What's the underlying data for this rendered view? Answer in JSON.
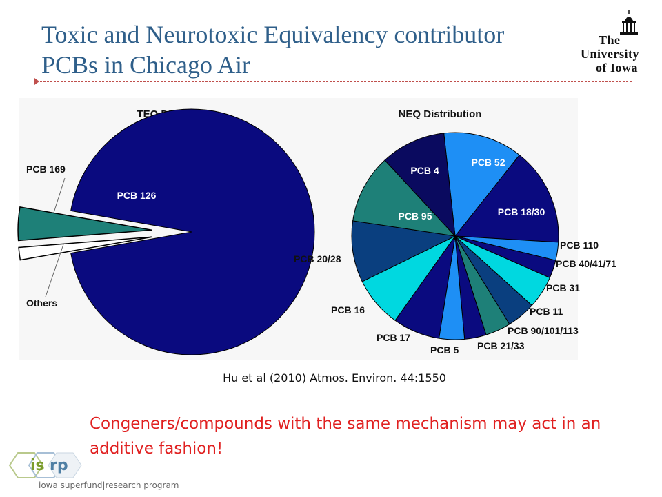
{
  "header": {
    "title": "Toxic and Neurotoxic Equivalency contributor PCBs in Chicago Air",
    "logo_line1": "The",
    "logo_line2": "University",
    "logo_line3": "of Iowa"
  },
  "chart_data": [
    {
      "type": "pie",
      "title": "TEQ Distribution",
      "slices": [
        {
          "label": "PCB 126",
          "value": 94.5,
          "color": "#0a0a7f",
          "label_pos": "inside"
        },
        {
          "label": "PCB 169",
          "value": 4.0,
          "color": "#1e8078",
          "label_pos": "outside",
          "exploded": true
        },
        {
          "label": "Others",
          "value": 1.5,
          "color": "#ffffff",
          "label_pos": "outside",
          "exploded": true
        }
      ]
    },
    {
      "type": "pie",
      "title": "NEQ Distribution",
      "slices": [
        {
          "label": "PCB 52",
          "value": 11.0,
          "color": "#1e8ff5"
        },
        {
          "label": "PCB 18/30",
          "value": 13.5,
          "color": "#0a0a7f"
        },
        {
          "label": "PCB 110",
          "value": 2.5,
          "color": "#1e8ff5"
        },
        {
          "label": "PCB 40/41/71",
          "value": 2.5,
          "color": "#0a0a7f"
        },
        {
          "label": "PCB 31",
          "value": 4.5,
          "color": "#00d8e0"
        },
        {
          "label": "PCB 11",
          "value": 4.0,
          "color": "#0a3f7f"
        },
        {
          "label": "PCB 90/101/113",
          "value": 3.5,
          "color": "#1e8078"
        },
        {
          "label": "PCB 21/33",
          "value": 3.0,
          "color": "#0a0a7f"
        },
        {
          "label": "PCB 5",
          "value": 3.5,
          "color": "#1e8ff5"
        },
        {
          "label": "PCB 17",
          "value": 6.5,
          "color": "#0a0a7f"
        },
        {
          "label": "PCB 16",
          "value": 7.0,
          "color": "#00d8e0"
        },
        {
          "label": "PCB 20/28",
          "value": 8.5,
          "color": "#0a3f7f"
        },
        {
          "label": "PCB 95",
          "value": 9.5,
          "color": "#1e8078"
        },
        {
          "label": "PCB 4",
          "value": 9.0,
          "color": "#0a0a5f"
        }
      ]
    }
  ],
  "citation": "Hu et al (2010) Atmos. Environ. 44:1550",
  "note": "Congeners/compounds  with the same mechanism may act in an additive fashion!",
  "footer_logo": {
    "is": "is",
    "rp": "rp",
    "program": "iowa superfund|research program"
  },
  "colors": {
    "title": "#2f5f8a",
    "note": "#e02020",
    "accent_rule": "#c0504d"
  }
}
